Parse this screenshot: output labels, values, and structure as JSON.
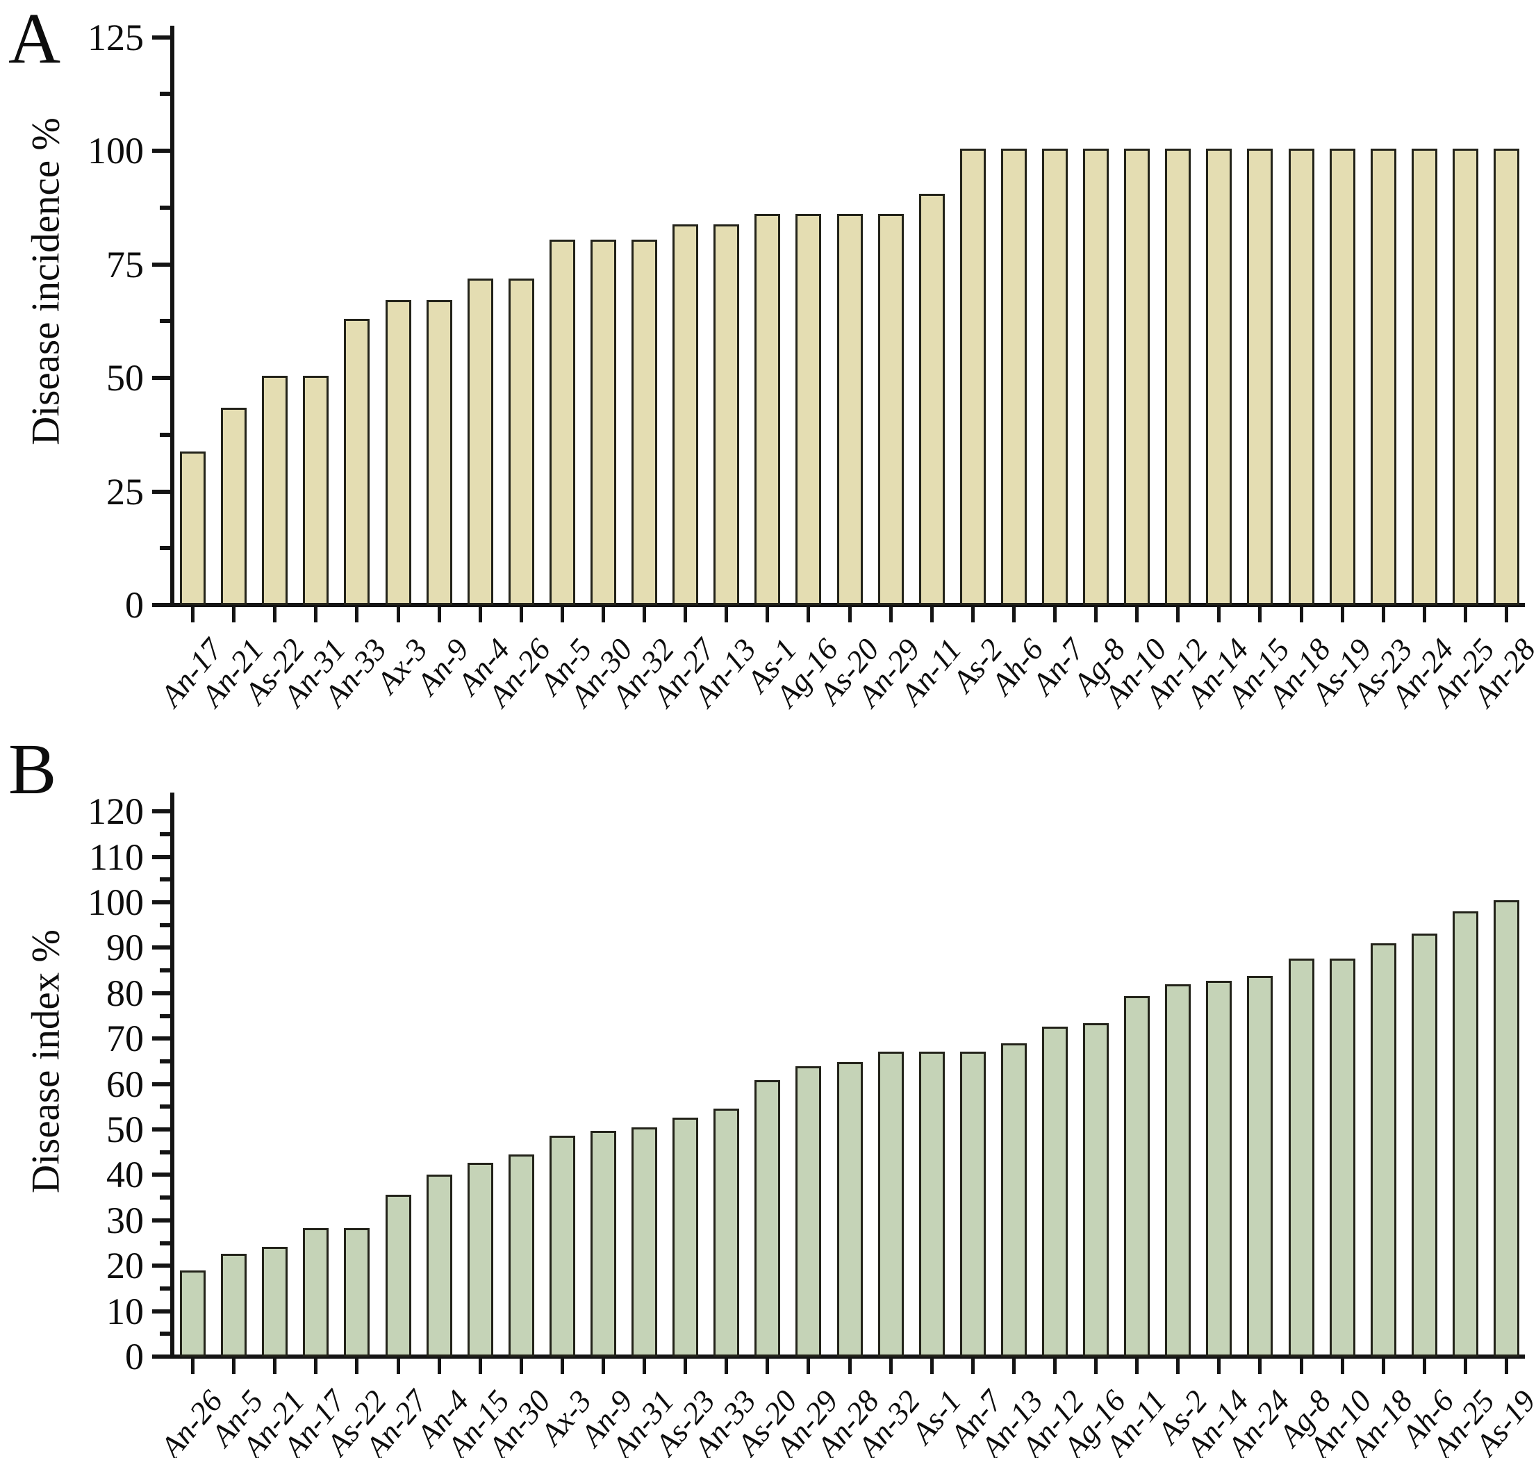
{
  "figure": {
    "description": "Two-panel bar chart figure of fungal isolate pathogenicity",
    "background": "#ffffff",
    "axis_color": "#141414"
  },
  "chart_data": [
    {
      "type": "bar",
      "panel": "A",
      "title": "",
      "xlabel": "",
      "ylabel": "Disease incidence %",
      "ylim": [
        0,
        125
      ],
      "ytick_step": 25,
      "yminor_step": 12.5,
      "grid": "off",
      "legend": "none",
      "bar_color": "#e4ddb2",
      "bar_border": "#23231a",
      "categories": [
        "An-17",
        "An-21",
        "As-22",
        "An-31",
        "An-33",
        "Ax-3",
        "An-9",
        "An-4",
        "An-26",
        "An-5",
        "An-30",
        "An-32",
        "An-27",
        "An-13",
        "As-1",
        "Ag-16",
        "As-20",
        "An-29",
        "An-11",
        "As-2",
        "Ah-6",
        "An-7",
        "Ag-8",
        "An-10",
        "An-12",
        "An-14",
        "An-15",
        "An-18",
        "As-19",
        "As-23",
        "An-24",
        "An-25",
        "An-28"
      ],
      "values": [
        33.3,
        42.9,
        50,
        50,
        62.5,
        66.7,
        66.7,
        71.4,
        71.4,
        80,
        80,
        80,
        83.3,
        83.3,
        85.7,
        85.7,
        85.7,
        85.7,
        90,
        100,
        100,
        100,
        100,
        100,
        100,
        100,
        100,
        100,
        100,
        100,
        100,
        100,
        100
      ]
    },
    {
      "type": "bar",
      "panel": "B",
      "title": "",
      "xlabel": "",
      "ylabel": "Disease index %",
      "ylim": [
        0,
        120
      ],
      "ytick_step": 10,
      "yminor_step": 5,
      "grid": "off",
      "legend": "none",
      "bar_color": "#c5d3b7",
      "bar_border": "#23231a",
      "categories": [
        "An-26",
        "An-5",
        "An-21",
        "An-17",
        "As-22",
        "An-27",
        "An-4",
        "An-15",
        "An-30",
        "Ax-3",
        "An-9",
        "An-31",
        "As-23",
        "An-33",
        "As-20",
        "An-29",
        "An-28",
        "An-32",
        "As-1",
        "An-7",
        "An-13",
        "An-12",
        "Ag-16",
        "An-11",
        "As-2",
        "An-14",
        "An-24",
        "Ag-8",
        "An-10",
        "An-18",
        "Ah-6",
        "An-25",
        "As-19"
      ],
      "values": [
        18.5,
        22.2,
        23.7,
        27.8,
        27.8,
        35.2,
        39.6,
        42.2,
        44.1,
        48.1,
        49.3,
        50,
        52.2,
        54.1,
        60.4,
        63.4,
        64.4,
        66.7,
        66.7,
        66.7,
        68.5,
        72.2,
        73,
        78.9,
        81.5,
        82.2,
        83.3,
        87.2,
        87.2,
        90.5,
        92.6,
        97.5,
        100
      ]
    }
  ]
}
